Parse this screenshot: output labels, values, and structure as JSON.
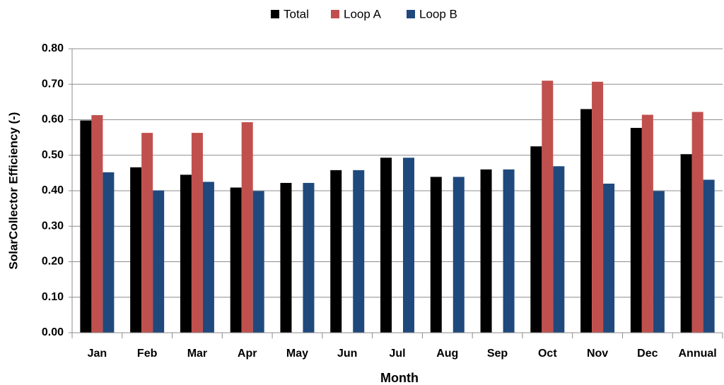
{
  "chart_data": {
    "type": "bar",
    "xlabel": "Month",
    "ylabel": "SolarCollector Efficiency (-)",
    "categories": [
      "Jan",
      "Feb",
      "Mar",
      "Apr",
      "May",
      "Jun",
      "Jul",
      "Aug",
      "Sep",
      "Oct",
      "Nov",
      "Dec",
      "Annual"
    ],
    "series": [
      {
        "name": "Total",
        "color": "#000000",
        "values": [
          0.598,
          0.466,
          0.445,
          0.409,
          0.422,
          0.458,
          0.493,
          0.439,
          0.46,
          0.525,
          0.63,
          0.577,
          0.503
        ]
      },
      {
        "name": "Loop A",
        "color": "#c0504d",
        "values": [
          0.613,
          0.563,
          0.563,
          0.593,
          null,
          null,
          null,
          null,
          null,
          0.71,
          0.707,
          0.614,
          0.622
        ]
      },
      {
        "name": "Loop B",
        "color": "#1f497d",
        "values": [
          0.452,
          0.401,
          0.425,
          0.399,
          0.422,
          0.458,
          0.493,
          0.439,
          0.46,
          0.469,
          0.42,
          0.399,
          0.431
        ]
      }
    ],
    "ylim": [
      0,
      0.8
    ],
    "yticks": [
      {
        "value": 0,
        "label": "0.00"
      },
      {
        "value": 0.1,
        "label": "0.10"
      },
      {
        "value": 0.2,
        "label": "0.20"
      },
      {
        "value": 0.3,
        "label": "0.30"
      },
      {
        "value": 0.4,
        "label": "0.40"
      },
      {
        "value": 0.5,
        "label": "0.50"
      },
      {
        "value": 0.6,
        "label": "0.60"
      },
      {
        "value": 0.7,
        "label": "0.70"
      },
      {
        "value": 0.8,
        "label": "0.80"
      }
    ],
    "grid": true,
    "legend": "top"
  }
}
